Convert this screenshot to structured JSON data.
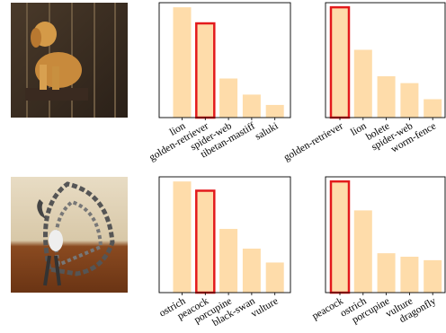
{
  "chart_data": [
    {
      "type": "bar",
      "categories": [
        "lion",
        "golden-retriever",
        "spider-web",
        "tibetan-mastiff",
        "saluki"
      ],
      "values": [
        0.96,
        0.82,
        0.34,
        0.2,
        0.11
      ],
      "color": "#fedcaa",
      "highlight": 1,
      "highlight_color": "#e31a1c",
      "ylim": [
        0,
        1
      ]
    },
    {
      "type": "bar",
      "categories": [
        "golden-retriever",
        "lion",
        "bolete",
        "spider-web",
        "worm-fence"
      ],
      "values": [
        0.96,
        0.59,
        0.36,
        0.3,
        0.16
      ],
      "color": "#fedcaa",
      "highlight": 0,
      "highlight_color": "#e31a1c",
      "ylim": [
        0,
        1
      ]
    },
    {
      "type": "bar",
      "categories": [
        "ostrich",
        "peacock",
        "porcupine",
        "black-swan",
        "vulture"
      ],
      "values": [
        0.96,
        0.88,
        0.55,
        0.38,
        0.26
      ],
      "color": "#fedcaa",
      "highlight": 1,
      "highlight_color": "#e31a1c",
      "ylim": [
        0,
        1
      ]
    },
    {
      "type": "bar",
      "categories": [
        "peacock",
        "ostrich",
        "porcupine",
        "vulture",
        "dragonfly"
      ],
      "values": [
        0.96,
        0.71,
        0.34,
        0.31,
        0.28
      ],
      "color": "#fedcaa",
      "highlight": 0,
      "highlight_color": "#e31a1c",
      "ylim": [
        0,
        1
      ]
    }
  ]
}
